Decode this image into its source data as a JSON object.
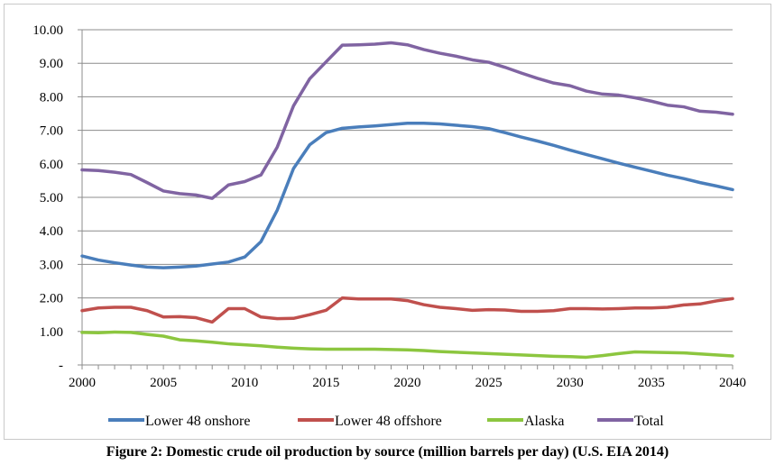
{
  "caption": "Figure 2: Domestic crude oil production by source (million barrels per day) (U.S. EIA 2014)",
  "chart_data": {
    "type": "line",
    "title": "",
    "xlabel": "",
    "ylabel": "",
    "xlim": [
      2000,
      2040
    ],
    "ylim": [
      0,
      10
    ],
    "grid": true,
    "legend_position": "bottom",
    "x_ticks": [
      "2000",
      "2005",
      "2010",
      "2015",
      "2020",
      "2025",
      "2030",
      "2035",
      "2040"
    ],
    "y_ticks": [
      "-",
      "1.00",
      "2.00",
      "3.00",
      "4.00",
      "5.00",
      "6.00",
      "7.00",
      "8.00",
      "9.00",
      "10.00"
    ],
    "x": [
      2000,
      2001,
      2002,
      2003,
      2004,
      2005,
      2006,
      2007,
      2008,
      2009,
      2010,
      2011,
      2012,
      2013,
      2014,
      2015,
      2016,
      2017,
      2018,
      2019,
      2020,
      2021,
      2022,
      2023,
      2024,
      2025,
      2026,
      2027,
      2028,
      2029,
      2030,
      2031,
      2032,
      2033,
      2034,
      2035,
      2036,
      2037,
      2038,
      2039,
      2040
    ],
    "series": [
      {
        "name": "Lower 48 onshore",
        "color": "#4a7ebb",
        "values": [
          3.25,
          3.13,
          3.05,
          2.98,
          2.92,
          2.9,
          2.92,
          2.95,
          3.01,
          3.07,
          3.22,
          3.68,
          4.62,
          5.86,
          6.57,
          6.93,
          7.06,
          7.1,
          7.13,
          7.17,
          7.21,
          7.21,
          7.19,
          7.15,
          7.11,
          7.05,
          6.93,
          6.8,
          6.68,
          6.55,
          6.41,
          6.28,
          6.15,
          6.02,
          5.9,
          5.78,
          5.66,
          5.56,
          5.44,
          5.34,
          5.23
        ]
      },
      {
        "name": "Lower 48 offshore",
        "color": "#c0504d",
        "values": [
          1.62,
          1.7,
          1.72,
          1.72,
          1.62,
          1.43,
          1.44,
          1.41,
          1.28,
          1.68,
          1.68,
          1.43,
          1.38,
          1.39,
          1.5,
          1.63,
          2.0,
          1.97,
          1.97,
          1.97,
          1.92,
          1.8,
          1.72,
          1.68,
          1.63,
          1.65,
          1.64,
          1.6,
          1.6,
          1.62,
          1.68,
          1.68,
          1.67,
          1.68,
          1.7,
          1.7,
          1.72,
          1.79,
          1.82,
          1.91,
          1.98
        ]
      },
      {
        "name": "Alaska",
        "color": "#8cc63f",
        "values": [
          0.97,
          0.96,
          0.98,
          0.97,
          0.91,
          0.86,
          0.75,
          0.72,
          0.68,
          0.63,
          0.6,
          0.57,
          0.53,
          0.5,
          0.48,
          0.47,
          0.47,
          0.47,
          0.47,
          0.46,
          0.45,
          0.43,
          0.4,
          0.38,
          0.36,
          0.34,
          0.32,
          0.3,
          0.28,
          0.26,
          0.25,
          0.23,
          0.28,
          0.34,
          0.39,
          0.38,
          0.37,
          0.36,
          0.33,
          0.3,
          0.27
        ]
      },
      {
        "name": "Total",
        "color": "#8064a2",
        "values": [
          5.82,
          5.8,
          5.75,
          5.68,
          5.44,
          5.19,
          5.11,
          5.07,
          4.97,
          5.37,
          5.47,
          5.67,
          6.5,
          7.73,
          8.54,
          9.04,
          9.54,
          9.55,
          9.57,
          9.61,
          9.55,
          9.41,
          9.3,
          9.21,
          9.1,
          9.03,
          8.88,
          8.71,
          8.55,
          8.41,
          8.33,
          8.17,
          8.08,
          8.05,
          7.97,
          7.87,
          7.75,
          7.7,
          7.57,
          7.54,
          7.48
        ]
      }
    ]
  }
}
